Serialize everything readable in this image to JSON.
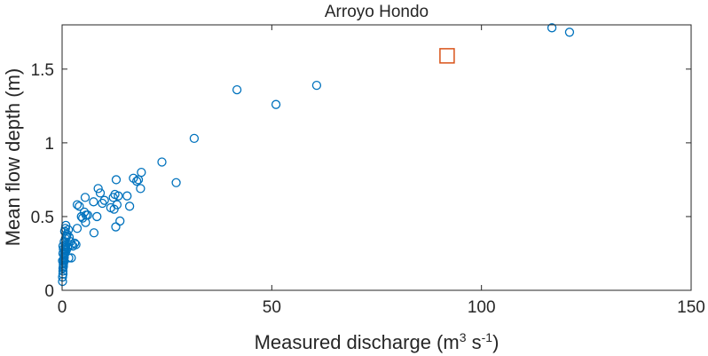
{
  "chart_data": {
    "type": "scatter",
    "title": "Arroyo Hondo",
    "xlabel": {
      "main": "Measured discharge (m",
      "sup1": "3",
      "mid": " s",
      "sup2": "-1",
      "end": ")"
    },
    "ylabel": "Mean flow depth (m)",
    "xlim": [
      0,
      150
    ],
    "ylim": [
      0,
      1.8
    ],
    "xticks": [
      0,
      50,
      100,
      150
    ],
    "yticks": [
      0,
      0.5,
      1,
      1.5
    ],
    "ytick_labels": [
      "0",
      "0.5",
      "1",
      "1.5"
    ],
    "grid": false,
    "colors": {
      "measured": "#0072BD",
      "highlight": "#D95319",
      "axis": "#262626"
    },
    "series": [
      {
        "marker": "circle",
        "points": [
          [
            0.1,
            0.06
          ],
          [
            0.1,
            0.09
          ],
          [
            0.2,
            0.11
          ],
          [
            0.2,
            0.13
          ],
          [
            0.2,
            0.15
          ],
          [
            0.3,
            0.16
          ],
          [
            0.3,
            0.17
          ],
          [
            0.3,
            0.18
          ],
          [
            0.4,
            0.19
          ],
          [
            0.4,
            0.2
          ],
          [
            0.4,
            0.21
          ],
          [
            0.5,
            0.22
          ],
          [
            0.5,
            0.23
          ],
          [
            0.5,
            0.24
          ],
          [
            0.6,
            0.25
          ],
          [
            0.6,
            0.26
          ],
          [
            0.7,
            0.27
          ],
          [
            0.7,
            0.28
          ],
          [
            0.8,
            0.29
          ],
          [
            0.8,
            0.3
          ],
          [
            0.9,
            0.31
          ],
          [
            0.2,
            0.25
          ],
          [
            0.3,
            0.28
          ],
          [
            0.1,
            0.2
          ],
          [
            0.2,
            0.3
          ],
          [
            0.5,
            0.33
          ],
          [
            0.8,
            0.35
          ],
          [
            1.0,
            0.36
          ],
          [
            1.1,
            0.37
          ],
          [
            1.2,
            0.38
          ],
          [
            0.6,
            0.4
          ],
          [
            0.8,
            0.42
          ],
          [
            0.9,
            0.44
          ],
          [
            1.5,
            0.41
          ],
          [
            1.7,
            0.36
          ],
          [
            2.0,
            0.33
          ],
          [
            2.3,
            0.31
          ],
          [
            2.6,
            0.3
          ],
          [
            1.3,
            0.29
          ],
          [
            1.0,
            0.27
          ],
          [
            1.6,
            0.22
          ],
          [
            2.2,
            0.22
          ],
          [
            3.0,
            0.32
          ],
          [
            3.3,
            0.31
          ],
          [
            3.6,
            0.42
          ],
          [
            3.6,
            0.58
          ],
          [
            4.1,
            0.57
          ],
          [
            4.6,
            0.5
          ],
          [
            4.9,
            0.49
          ],
          [
            5.3,
            0.53
          ],
          [
            5.5,
            0.63
          ],
          [
            5.6,
            0.46
          ],
          [
            5.7,
            0.51
          ],
          [
            6.1,
            0.51
          ],
          [
            7.5,
            0.6
          ],
          [
            7.6,
            0.39
          ],
          [
            8.3,
            0.5
          ],
          [
            8.6,
            0.69
          ],
          [
            9.1,
            0.66
          ],
          [
            9.6,
            0.59
          ],
          [
            10.1,
            0.61
          ],
          [
            11.6,
            0.56
          ],
          [
            12.2,
            0.63
          ],
          [
            12.4,
            0.55
          ],
          [
            12.6,
            0.65
          ],
          [
            12.8,
            0.43
          ],
          [
            12.9,
            0.75
          ],
          [
            13.1,
            0.58
          ],
          [
            13.4,
            0.64
          ],
          [
            13.8,
            0.47
          ],
          [
            15.5,
            0.64
          ],
          [
            16.1,
            0.57
          ],
          [
            17.0,
            0.76
          ],
          [
            17.8,
            0.74
          ],
          [
            18.2,
            0.75
          ],
          [
            18.7,
            0.69
          ],
          [
            18.9,
            0.8
          ],
          [
            23.8,
            0.87
          ],
          [
            27.2,
            0.73
          ],
          [
            31.5,
            1.03
          ],
          [
            41.7,
            1.36
          ],
          [
            51.0,
            1.26
          ],
          [
            60.7,
            1.39
          ],
          [
            116.8,
            1.78
          ],
          [
            121.0,
            1.75
          ]
        ]
      },
      {
        "marker": "square",
        "points": [
          [
            91.8,
            1.59
          ]
        ]
      }
    ]
  }
}
